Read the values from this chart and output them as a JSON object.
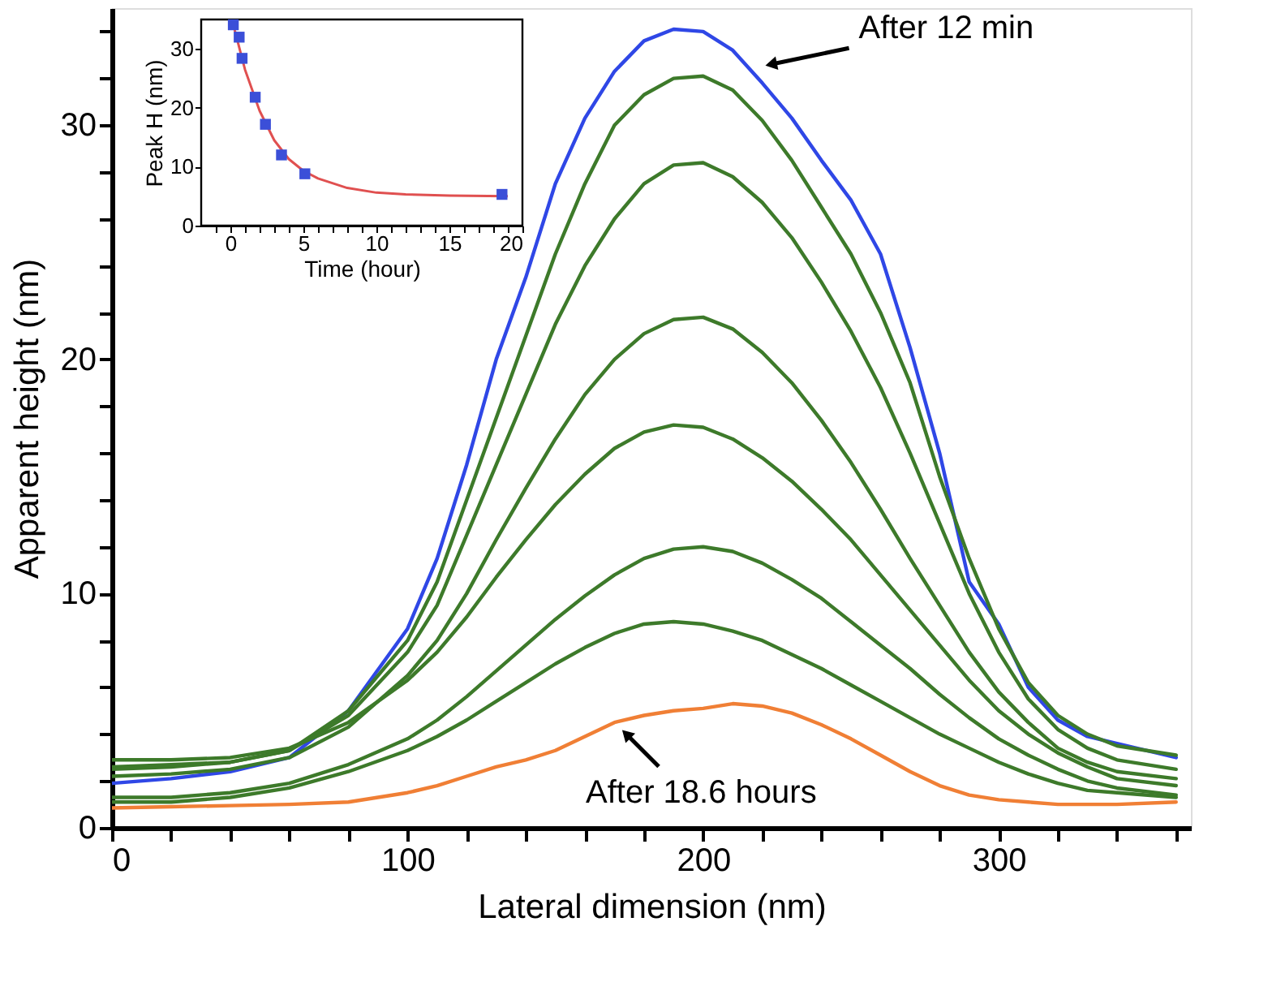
{
  "chart_data": [
    {
      "type": "line",
      "xlabel": "Lateral dimension (nm)",
      "ylabel": "Apparent height (nm)",
      "x": [
        0,
        20,
        40,
        60,
        80,
        100,
        110,
        120,
        130,
        140,
        150,
        160,
        170,
        180,
        190,
        200,
        210,
        220,
        230,
        240,
        250,
        260,
        270,
        280,
        290,
        300,
        310,
        320,
        330,
        340,
        360
      ],
      "series": [
        {
          "color": "#2f47e6",
          "values": [
            1.9,
            2.1,
            2.4,
            3.0,
            5.0,
            8.5,
            11.5,
            15.5,
            20,
            23.5,
            27.5,
            30.3,
            32.3,
            33.6,
            34.1,
            34.0,
            33.2,
            31.8,
            30.3,
            28.5,
            26.8,
            24.5,
            20.5,
            16,
            10.5,
            8.7,
            6,
            4.6,
            3.9,
            3.6,
            3.0
          ]
        },
        {
          "color": "#3d7a2a",
          "values": [
            2.6,
            2.7,
            2.8,
            3.3,
            5.0,
            8.0,
            10.5,
            14,
            17.5,
            21,
            24.5,
            27.5,
            30,
            31.3,
            32.0,
            32.1,
            31.5,
            30.2,
            28.5,
            26.5,
            24.5,
            22,
            19,
            15,
            11.5,
            8.5,
            6.2,
            4.8,
            4.0,
            3.5,
            3.1
          ]
        },
        {
          "color": "#3d7a2a",
          "values": [
            2.5,
            2.6,
            2.8,
            3.3,
            4.8,
            7.5,
            9.5,
            12.5,
            15.5,
            18.5,
            21.5,
            24,
            26,
            27.5,
            28.3,
            28.4,
            27.8,
            26.7,
            25.2,
            23.3,
            21.2,
            18.8,
            16,
            13,
            10,
            7.5,
            5.5,
            4.2,
            3.4,
            2.9,
            2.5
          ]
        },
        {
          "color": "#3d7a2a",
          "values": [
            2.2,
            2.3,
            2.5,
            3.0,
            4.3,
            6.5,
            8,
            10,
            12.3,
            14.5,
            16.6,
            18.5,
            20,
            21.1,
            21.7,
            21.8,
            21.3,
            20.3,
            19,
            17.4,
            15.6,
            13.6,
            11.5,
            9.5,
            7.5,
            5.8,
            4.5,
            3.4,
            2.8,
            2.4,
            2.1
          ]
        },
        {
          "color": "#3d7a2a",
          "values": [
            2.9,
            2.9,
            3.0,
            3.4,
            4.5,
            6.3,
            7.5,
            9,
            10.7,
            12.3,
            13.8,
            15.1,
            16.2,
            16.9,
            17.2,
            17.1,
            16.6,
            15.8,
            14.8,
            13.6,
            12.3,
            10.8,
            9.3,
            7.8,
            6.3,
            5,
            4,
            3.2,
            2.6,
            2.1,
            1.8
          ]
        },
        {
          "color": "#3d7a2a",
          "values": [
            1.3,
            1.3,
            1.5,
            1.9,
            2.7,
            3.8,
            4.6,
            5.6,
            6.7,
            7.8,
            8.9,
            9.9,
            10.8,
            11.5,
            11.9,
            12.0,
            11.8,
            11.3,
            10.6,
            9.8,
            8.8,
            7.8,
            6.8,
            5.7,
            4.7,
            3.8,
            3.1,
            2.5,
            2.0,
            1.7,
            1.4
          ]
        },
        {
          "color": "#3d7a2a",
          "values": [
            1.1,
            1.1,
            1.3,
            1.7,
            2.4,
            3.3,
            3.9,
            4.6,
            5.4,
            6.2,
            7,
            7.7,
            8.3,
            8.7,
            8.8,
            8.7,
            8.4,
            8,
            7.4,
            6.8,
            6.1,
            5.4,
            4.7,
            4,
            3.4,
            2.8,
            2.3,
            1.9,
            1.6,
            1.5,
            1.3
          ]
        },
        {
          "color": "#f07f35",
          "values": [
            0.85,
            0.9,
            0.95,
            1.0,
            1.1,
            1.5,
            1.8,
            2.2,
            2.6,
            2.9,
            3.3,
            3.9,
            4.5,
            4.8,
            5.0,
            5.1,
            5.3,
            5.2,
            4.9,
            4.4,
            3.8,
            3.1,
            2.4,
            1.8,
            1.4,
            1.2,
            1.1,
            1.0,
            1.0,
            1.0,
            1.1
          ]
        }
      ],
      "xlim": [
        0,
        365
      ],
      "ylim": [
        0,
        35
      ],
      "xticks": [
        0,
        {
          "value": 20,
          "label": null
        },
        {
          "value": 40,
          "label": null
        },
        {
          "value": 60,
          "label": null
        },
        {
          "value": 80,
          "label": null
        },
        100,
        {
          "value": 120,
          "label": null
        },
        {
          "value": 140,
          "label": null
        },
        {
          "value": 160,
          "label": null
        },
        {
          "value": 180,
          "label": null
        },
        200,
        {
          "value": 220,
          "label": null
        },
        {
          "value": 240,
          "label": null
        },
        {
          "value": 260,
          "label": null
        },
        {
          "value": 280,
          "label": null
        },
        300,
        {
          "value": 320,
          "label": null
        },
        {
          "value": 340,
          "label": null
        },
        {
          "value": 360,
          "label": null
        }
      ],
      "yticks": [
        0,
        {
          "value": 2,
          "label": null
        },
        {
          "value": 4,
          "label": null
        },
        {
          "value": 6,
          "label": null
        },
        {
          "value": 8,
          "label": null
        },
        10,
        {
          "value": 12,
          "label": null
        },
        {
          "value": 14,
          "label": null
        },
        {
          "value": 16,
          "label": null
        },
        {
          "value": 18,
          "label": null
        },
        20,
        {
          "value": 22,
          "label": null
        },
        {
          "value": 24,
          "label": null
        },
        {
          "value": 26,
          "label": null
        },
        {
          "value": 28,
          "label": null
        },
        30,
        {
          "value": 32,
          "label": null
        },
        {
          "value": 34,
          "label": null
        }
      ],
      "annotations": [
        {
          "text": "After 12 min",
          "x": 223,
          "y": 32.6
        },
        {
          "text": "After 18.6 hours",
          "x": 174,
          "y": 4.0
        }
      ]
    },
    {
      "type": "scatter",
      "xlabel": "Time (hour)",
      "ylabel": "Peak H (nm)",
      "series": [
        {
          "type": "scatter",
          "color": "#3b4fd8",
          "marker": "square",
          "x": [
            0.2,
            0.6,
            0.8,
            1.7,
            2.4,
            3.5,
            5.1,
            18.6
          ],
          "values": [
            34.1,
            32.0,
            28.4,
            21.8,
            17.2,
            12.0,
            8.8,
            5.3
          ]
        },
        {
          "type": "line",
          "color": "#e05050",
          "x": [
            0.2,
            1,
            2,
            3,
            4,
            5,
            6,
            8,
            10,
            12,
            15,
            19
          ],
          "values": [
            34.1,
            26.5,
            19.5,
            14.5,
            11.3,
            9.3,
            8.0,
            6.4,
            5.6,
            5.3,
            5.1,
            5.0
          ]
        }
      ],
      "xlim": [
        -2,
        20
      ],
      "ylim": [
        0,
        35
      ],
      "xticks": [
        {
          "value": -1,
          "label": null
        },
        0,
        {
          "value": 1,
          "label": null
        },
        {
          "value": 2,
          "label": null
        },
        {
          "value": 3,
          "label": null
        },
        {
          "value": 4,
          "label": null
        },
        5,
        {
          "value": 6,
          "label": null
        },
        {
          "value": 7,
          "label": null
        },
        {
          "value": 8,
          "label": null
        },
        {
          "value": 9,
          "label": null
        },
        10,
        {
          "value": 11,
          "label": null
        },
        {
          "value": 12,
          "label": null
        },
        {
          "value": 13,
          "label": null
        },
        {
          "value": 14,
          "label": null
        },
        15,
        {
          "value": 16,
          "label": null
        },
        {
          "value": 17,
          "label": null
        },
        {
          "value": 18,
          "label": null
        },
        {
          "value": 19,
          "label": null
        },
        20
      ],
      "yticks": [
        0,
        10,
        20,
        30
      ]
    }
  ]
}
